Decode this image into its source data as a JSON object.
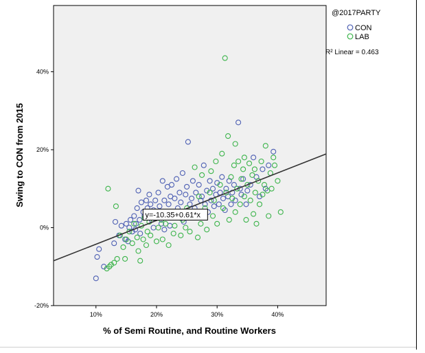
{
  "chart_data": {
    "type": "scatter",
    "xlabel": "% of Semi Routine, and Routine Workers",
    "ylabel": "Swing to CON from 2015",
    "x_ticks": [
      {
        "value": 10,
        "label": "10%"
      },
      {
        "value": 20,
        "label": "20%"
      },
      {
        "value": 30,
        "label": "30%"
      },
      {
        "value": 40,
        "label": "40%"
      }
    ],
    "y_ticks": [
      {
        "value": -20,
        "label": "-20%"
      },
      {
        "value": 0,
        "label": "0%"
      },
      {
        "value": 20,
        "label": "20%"
      },
      {
        "value": 40,
        "label": "40%"
      }
    ],
    "xlim": [
      3,
      48
    ],
    "ylim": [
      -20,
      57
    ],
    "legend": {
      "title": "@2017PARTY",
      "placement": "top-right",
      "entries": [
        {
          "name": "CON",
          "color": "#4d5fb3"
        },
        {
          "name": "LAB",
          "color": "#3cb44b"
        }
      ]
    },
    "r2_label": "R² Linear = 0.463",
    "fit_line": {
      "intercept": -10.35,
      "slope": 0.61,
      "label": "y=-10.35+0.61*x"
    },
    "background": "#f0f0f0",
    "series": [
      {
        "name": "CON",
        "color": "#4d5fb3",
        "points": [
          [
            10.0,
            -13.0
          ],
          [
            10.2,
            -7.5
          ],
          [
            10.5,
            -5.5
          ],
          [
            11.3,
            -10.0
          ],
          [
            13.0,
            -4.0
          ],
          [
            13.2,
            1.5
          ],
          [
            13.8,
            -2.0
          ],
          [
            14.2,
            0.5
          ],
          [
            14.8,
            -3.0
          ],
          [
            15.0,
            1.0
          ],
          [
            15.3,
            -3.5
          ],
          [
            15.5,
            0.0
          ],
          [
            15.7,
            2.0
          ],
          [
            16.0,
            -1.0
          ],
          [
            16.3,
            3.0
          ],
          [
            16.6,
            1.0
          ],
          [
            16.8,
            5.0
          ],
          [
            17.0,
            9.5
          ],
          [
            17.2,
            2.0
          ],
          [
            17.5,
            6.5
          ],
          [
            17.8,
            4.0
          ],
          [
            18.0,
            3.0
          ],
          [
            18.3,
            7.0
          ],
          [
            18.5,
            5.0
          ],
          [
            18.8,
            8.5
          ],
          [
            19.0,
            6.0
          ],
          [
            19.2,
            2.0
          ],
          [
            19.5,
            4.5
          ],
          [
            19.8,
            7.0
          ],
          [
            20.0,
            3.5
          ],
          [
            20.3,
            9.0
          ],
          [
            20.5,
            5.5
          ],
          [
            20.8,
            1.0
          ],
          [
            21.0,
            12.0
          ],
          [
            21.3,
            7.0
          ],
          [
            21.5,
            4.0
          ],
          [
            21.8,
            10.5
          ],
          [
            22.0,
            6.0
          ],
          [
            22.3,
            8.0
          ],
          [
            22.5,
            11.0
          ],
          [
            22.8,
            3.0
          ],
          [
            23.0,
            7.5
          ],
          [
            23.3,
            12.5
          ],
          [
            23.5,
            5.0
          ],
          [
            23.8,
            9.0
          ],
          [
            24.0,
            6.5
          ],
          [
            24.3,
            14.0
          ],
          [
            24.5,
            4.0
          ],
          [
            24.8,
            8.5
          ],
          [
            25.0,
            10.5
          ],
          [
            25.2,
            22.0
          ],
          [
            25.5,
            6.0
          ],
          [
            25.8,
            7.5
          ],
          [
            26.0,
            12.0
          ],
          [
            26.3,
            5.0
          ],
          [
            26.5,
            9.0
          ],
          [
            26.8,
            3.0
          ],
          [
            27.0,
            11.0
          ],
          [
            27.3,
            7.0
          ],
          [
            27.5,
            8.0
          ],
          [
            27.8,
            16.0
          ],
          [
            28.0,
            6.0
          ],
          [
            28.3,
            9.5
          ],
          [
            28.5,
            4.0
          ],
          [
            28.8,
            12.0
          ],
          [
            29.0,
            7.0
          ],
          [
            29.3,
            10.0
          ],
          [
            29.5,
            5.5
          ],
          [
            29.8,
            8.5
          ],
          [
            30.0,
            11.5
          ],
          [
            30.3,
            6.0
          ],
          [
            30.5,
            9.0
          ],
          [
            30.8,
            13.0
          ],
          [
            31.0,
            7.5
          ],
          [
            31.3,
            4.5
          ],
          [
            31.5,
            10.0
          ],
          [
            31.8,
            8.0
          ],
          [
            32.0,
            12.0
          ],
          [
            32.3,
            6.0
          ],
          [
            32.5,
            9.0
          ],
          [
            32.8,
            11.0
          ],
          [
            33.0,
            7.0
          ],
          [
            33.5,
            27.0
          ],
          [
            33.8,
            10.0
          ],
          [
            34.0,
            8.5
          ],
          [
            34.3,
            12.5
          ],
          [
            34.8,
            6.0
          ],
          [
            35.0,
            9.5
          ],
          [
            35.5,
            11.0
          ],
          [
            36.0,
            18.0
          ],
          [
            36.5,
            13.0
          ],
          [
            37.0,
            8.0
          ],
          [
            37.5,
            15.0
          ],
          [
            38.0,
            10.0
          ],
          [
            38.5,
            16.0
          ],
          [
            39.3,
            19.5
          ],
          [
            22.2,
            0.5
          ],
          [
            19.5,
            0.0
          ],
          [
            17.3,
            -1.5
          ],
          [
            24.5,
            1.5
          ],
          [
            21.3,
            -0.5
          ],
          [
            16.5,
            -0.5
          ]
        ]
      },
      {
        "name": "LAB",
        "color": "#3cb44b",
        "points": [
          [
            11.8,
            -10.5
          ],
          [
            12.0,
            10.0
          ],
          [
            12.2,
            -10.0
          ],
          [
            12.5,
            -9.5
          ],
          [
            13.0,
            -9.0
          ],
          [
            13.3,
            5.5
          ],
          [
            13.5,
            -8.0
          ],
          [
            14.0,
            -2.0
          ],
          [
            14.5,
            -5.0
          ],
          [
            14.8,
            -8.0
          ],
          [
            15.0,
            -3.0
          ],
          [
            15.5,
            -1.0
          ],
          [
            16.0,
            -4.0
          ],
          [
            16.3,
            1.0
          ],
          [
            16.8,
            -2.5
          ],
          [
            17.0,
            -6.0
          ],
          [
            17.3,
            -8.5
          ],
          [
            17.5,
            0.5
          ],
          [
            17.8,
            -3.0
          ],
          [
            18.0,
            2.5
          ],
          [
            18.3,
            -4.5
          ],
          [
            18.5,
            -1.0
          ],
          [
            18.8,
            1.5
          ],
          [
            19.0,
            -2.0
          ],
          [
            19.5,
            3.0
          ],
          [
            20.0,
            -3.5
          ],
          [
            20.3,
            0.0
          ],
          [
            20.8,
            2.0
          ],
          [
            21.0,
            -3.0
          ],
          [
            21.5,
            1.0
          ],
          [
            22.0,
            -4.5
          ],
          [
            22.3,
            3.5
          ],
          [
            22.8,
            -1.5
          ],
          [
            23.0,
            0.5
          ],
          [
            23.5,
            4.0
          ],
          [
            24.0,
            -2.0
          ],
          [
            24.3,
            2.0
          ],
          [
            24.8,
            0.0
          ],
          [
            25.0,
            5.0
          ],
          [
            25.5,
            -1.0
          ],
          [
            26.0,
            3.0
          ],
          [
            26.3,
            15.5
          ],
          [
            26.8,
            -2.5
          ],
          [
            27.0,
            8.0
          ],
          [
            27.3,
            1.0
          ],
          [
            27.5,
            13.5
          ],
          [
            28.0,
            5.0
          ],
          [
            28.3,
            -0.5
          ],
          [
            28.8,
            9.0
          ],
          [
            29.0,
            14.5
          ],
          [
            29.3,
            3.0
          ],
          [
            29.5,
            7.0
          ],
          [
            29.8,
            17.0
          ],
          [
            30.0,
            1.0
          ],
          [
            30.5,
            11.0
          ],
          [
            30.8,
            19.0
          ],
          [
            31.0,
            5.0
          ],
          [
            31.3,
            43.5
          ],
          [
            31.5,
            9.0
          ],
          [
            31.8,
            23.5
          ],
          [
            32.0,
            2.0
          ],
          [
            32.3,
            13.0
          ],
          [
            32.5,
            7.5
          ],
          [
            32.8,
            16.0
          ],
          [
            33.0,
            4.0
          ],
          [
            33.3,
            10.0
          ],
          [
            33.5,
            17.0
          ],
          [
            33.8,
            6.0
          ],
          [
            34.0,
            12.5
          ],
          [
            34.3,
            15.0
          ],
          [
            34.5,
            8.0
          ],
          [
            34.8,
            2.0
          ],
          [
            35.0,
            11.0
          ],
          [
            35.3,
            16.5
          ],
          [
            35.5,
            7.0
          ],
          [
            35.8,
            13.5
          ],
          [
            36.0,
            3.5
          ],
          [
            36.3,
            9.0
          ],
          [
            36.5,
            1.0
          ],
          [
            36.8,
            12.0
          ],
          [
            37.0,
            6.0
          ],
          [
            37.3,
            17.0
          ],
          [
            37.5,
            8.5
          ],
          [
            37.8,
            11.0
          ],
          [
            38.0,
            21.0
          ],
          [
            38.3,
            9.5
          ],
          [
            38.5,
            3.0
          ],
          [
            38.8,
            14.0
          ],
          [
            39.0,
            10.0
          ],
          [
            39.3,
            18.0
          ],
          [
            39.5,
            16.0
          ],
          [
            40.0,
            12.0
          ],
          [
            40.5,
            4.0
          ],
          [
            34.5,
            18.0
          ],
          [
            33.0,
            21.5
          ],
          [
            36.2,
            15.0
          ]
        ]
      }
    ]
  }
}
